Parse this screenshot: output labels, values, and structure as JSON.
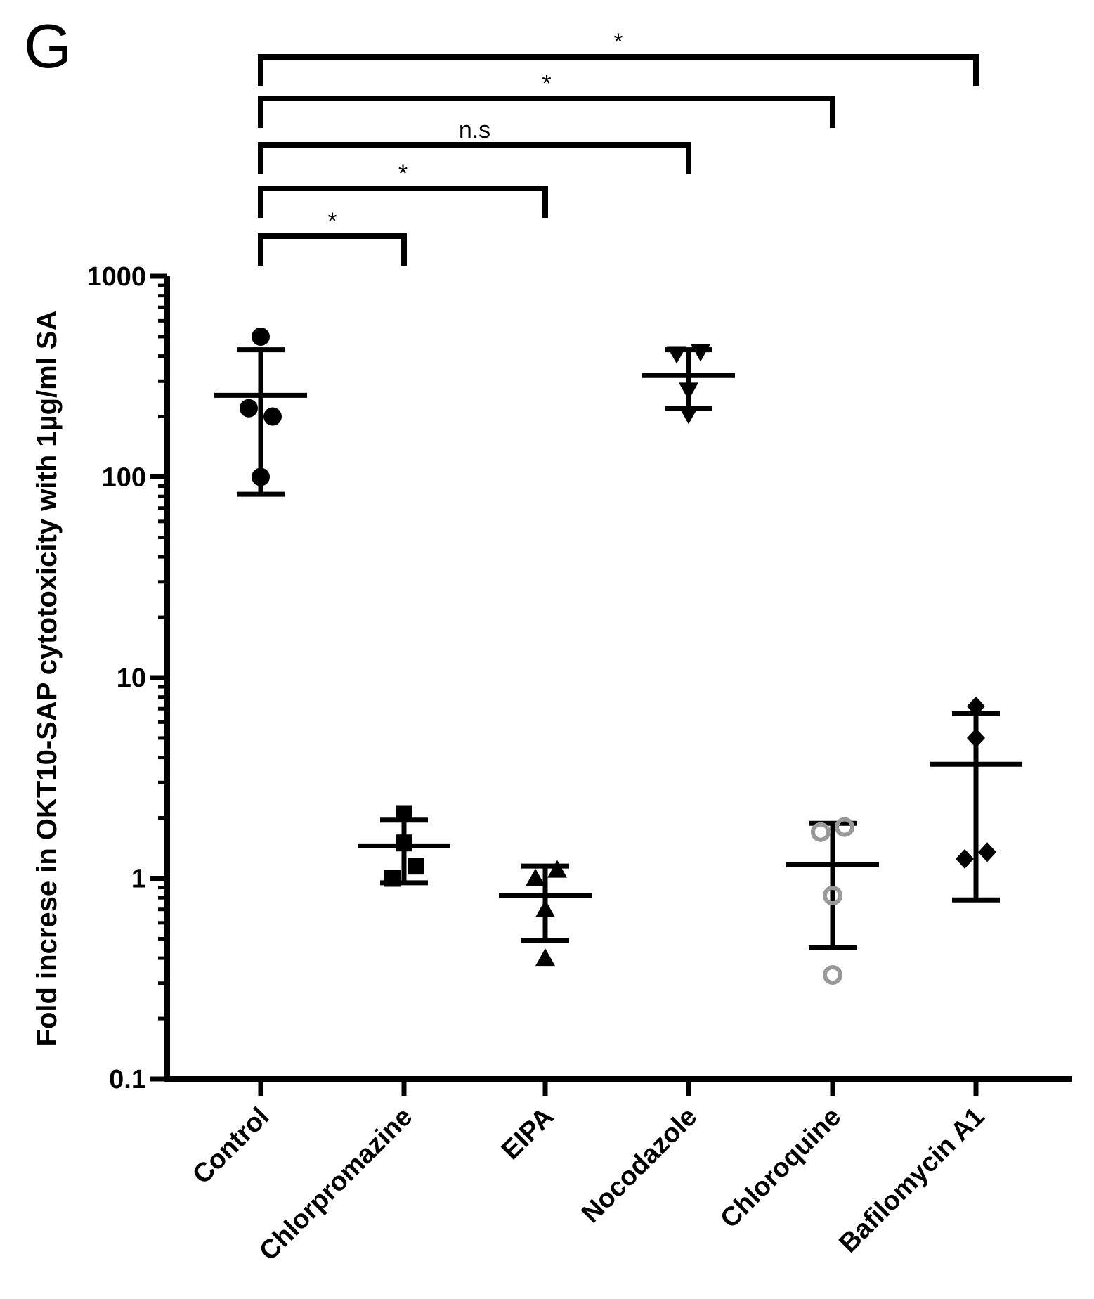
{
  "panel_letter": "G",
  "chart_data": {
    "type": "scatter",
    "title": "",
    "xlabel": "",
    "ylabel": "Fold increse in OKT10-SAP cytotoxicity with 1µg/ml SA",
    "yscale": "log",
    "ylim": [
      0.1,
      1000
    ],
    "yticks": [
      0.1,
      1,
      10,
      100,
      1000
    ],
    "ytick_labels": [
      "0.1",
      "1",
      "10",
      "100",
      "1000"
    ],
    "categories": [
      "Control",
      "Chlorpromazine",
      "EIPA",
      "Nocodazole",
      "Chloroquine",
      "Bafilomycin A1"
    ],
    "groups": [
      {
        "name": "Control",
        "marker": "circle",
        "color": "#000000",
        "points": [
          500,
          220,
          200,
          100
        ],
        "mean": 255,
        "err_low": 82,
        "err_high": 430
      },
      {
        "name": "Chlorpromazine",
        "marker": "square",
        "color": "#000000",
        "points": [
          2.1,
          1.5,
          1.15,
          1.0
        ],
        "mean": 1.45,
        "err_low": 0.95,
        "err_high": 1.95
      },
      {
        "name": "EIPA",
        "marker": "triangle-up",
        "color": "#000000",
        "points": [
          1.1,
          1.0,
          0.7,
          0.4
        ],
        "mean": 0.82,
        "err_low": 0.49,
        "err_high": 1.15
      },
      {
        "name": "Nocodazole",
        "marker": "triangle-down",
        "color": "#000000",
        "points": [
          420,
          410,
          270,
          205
        ],
        "mean": 320,
        "err_low": 220,
        "err_high": 430
      },
      {
        "name": "Chloroquine",
        "marker": "open-circle",
        "color": "#999999",
        "points": [
          1.8,
          1.7,
          0.82,
          0.33
        ],
        "mean": 1.17,
        "err_low": 0.45,
        "err_high": 1.88
      },
      {
        "name": "Bafilomycin A1",
        "marker": "diamond",
        "color": "#000000",
        "points": [
          7.2,
          5.0,
          1.35,
          1.25
        ],
        "mean": 3.7,
        "err_low": 0.78,
        "err_high": 6.6
      }
    ],
    "comparisons": [
      {
        "from": "Control",
        "to": "Chlorpromazine",
        "label": "*"
      },
      {
        "from": "Control",
        "to": "EIPA",
        "label": "*"
      },
      {
        "from": "Control",
        "to": "Nocodazole",
        "label": "n.s"
      },
      {
        "from": "Control",
        "to": "Chloroquine",
        "label": "*"
      },
      {
        "from": "Control",
        "to": "Bafilomycin A1",
        "label": "*"
      }
    ]
  }
}
